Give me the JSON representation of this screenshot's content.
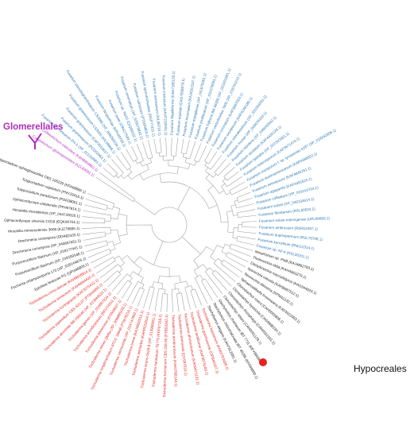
{
  "labels": {
    "glomerellales": "Glomerellales",
    "hypocreales": "Hypocreales"
  },
  "clades": [
    {
      "color": "#b02cbc",
      "leaves": [
        "Colletotrichum gloeosporioides (KZL82691.1)",
        "Colletotrichum orbiculare (KAH8904862.1)"
      ]
    },
    {
      "color": "#2b77b5",
      "leaves": [
        "Fusarium graminearum PH-1 (XP_011318961.1)",
        "Fusarium graminearum (PCD02963.1)",
        "Fusarium graminearum (CAF3619617.1)",
        "Fusarium graminearum CS3005 (KIL09968.1)",
        "Fusarium pseudograminearum CS3096 (XP_009260234.1)",
        "Fusarium langsethiae (KPA40768.1)",
        "Fusarium poae (OBS27549.1)",
        "Fusarium sp. Na10 (QIQ66032.1)",
        "Fusarium venenatum (XP_025579842.1)",
        "Fusarium culmorum (PTD05863.1)",
        "Fusarium sporotrichioides (RGP77231.1)",
        "Fusarium avenaceum (KIL88710.1)",
        "Fusarium tricinctum (KAH7219241.1)",
        "Fusarium flagelliforme (KAH7185133.1)",
        "Fusarium equiseti (CAG7556979.1)",
        "Fusarium incarnatum (KAJ4261157.1)",
        "Fusarium mangiferae (XP_041679381.1)",
        "Fusarium proliferatum (XP_031078581.1)",
        "Fusarium fujikuroi IMI 58289 (XP_023431691.1)",
        "Fusarium verticillioides 7600 (XP_018742210.1)",
        "Fusarium circinatum (KAF5687003.1)",
        "Fusarium oxysporum (KAF5246180.1)",
        "Fusarium odoratissimum (XP_031054291.1)",
        "Fusarium musae (XP_044678163.1)",
        "Fusarium redolens (XP_046043542.1)",
        "Fusarium acutatum (KAF4432126.1)",
        "Fusarium tjaetaba (XP_037203361.1)",
        "Fusarium heterosporum (KAF5671474.1)",
        "Fusarium oxysporum f. sp. lycopersici 4287 (XP_018242806.1)",
        "Fusarium austroamericanum (KAF5596822.1)",
        "Fusarium avenaceum (KAF4845761.1)",
        "Fusarium agapanthi (KAF4491815.1)",
        "Fusarium coffeatum (XP_031010754.1)",
        "Fusarium solani (XP_046134614.1)",
        "Fusarium floridanum (RSL60024.1)",
        "Fusarium solani-melongenae (UPL06669.1)",
        "Fusarium ambrosium (RSM11997.1)",
        "Fusarium duplospermum (RSL79708.1)",
        "Fusarium kuroshium (RMJ12314.1)",
        "Fusarium sp. AF-4 (RSL56201.1)"
      ]
    },
    {
      "color": "#222222",
      "leaves": [
        "Metarhizium sp. PNB (KAJ4862793.1)",
        "Thelonectria olida (KAH4963279.1)",
        "Dactylonectria macrodidyma (KAI1044023.1)",
        "Ilyonectria robusta (KAH8687512.1)",
        "Neonectria ditissima (KPM41232.1)",
        "Sphaerostilbella broomeana (KAF4922083.1)",
        "Clonostachys rosea (CAH0055808.1)",
        "Clonostachys byssicola (CAG9998234.1)",
        "Clonostachys rhizophaga (CAH0022181.1)",
        "Clonostachys solani (CAH0051129.1)",
        "Stachybotrys chartarum IBT 7711 (KEY66586.1)",
        "Stachybotrys chlorohalonata IBT 40285 (KFA69800.1)",
        "Stachybotrys elegans (KAH7312981.1)"
      ]
    },
    {
      "color": "#e5231e",
      "leaves": [
        "Trichoderma harzianum (KAK0753498.1)",
        "Trichoderma guizhouense (OPB44107.1)",
        "Trichoderma lentiforme (KAF3076183.1)",
        "Trichoderma afroharzianum (KAH0471131.1)",
        "Trichoderma simmonsii (QYS97524.1)",
        "Trichoderma atrobrunneum (KAK0766140.1)",
        "Trichoderma harzianum CBS 226.95 (PTB53342.1)",
        "Trichoderma harzianum T6776 (KKP07116.1)",
        "Trichoderma virens Gv29-8 (XP_013958061.1)",
        "Trichoderma semiorbis (KAH0522614.1)",
        "Trichoderma breve (KAJ4856312.1)",
        "Trichoderma citrinoviride (XP_024747893.1)",
        "Trichoderma longibrachiatum ATCC 18648 (PTB79316.1)",
        "Trichoderma reesei QM6a (XP_006966233.1)",
        "Trichoderma parareesei (OTA04627.1)",
        "Trichoderma arundinaceum (RFU74511.1)",
        "Trichoderma gamsii (XP_018657224.1)",
        "Trichoderma atroviride IMI 206040 (XP_013944510.1)",
        "Trichoderma asperellum CBS 433.97 (PTB44089.1)",
        "Trichoderma koningiopsis (KAF3275412.1)",
        "Trichoderma erinaceum (KAH6664420.1)",
        "Trichoderma cornu-damae (KAH6608914.1)"
      ]
    },
    {
      "color": "#222222",
      "leaves": [
        "Epichloe festucae Fl1 (QPG98809.1)",
        "Pochonia chlamydosporia 170 (XP_018144876.1)",
        "Purpureocillium lilacinum (XP_018180548.1)",
        "Purpureocillium lilacinum (XP_018177441.1)",
        "Drechmeria coniospora (XP_040657651.1)",
        "Drechmeria coniospora (ODA82105.1)",
        "Hirsutella minnesotensis 3608 (KJZ78885.1)",
        "Ophiocordyceps sinensis CO18 (EQK99704.1)",
        "Hirsutella rhossiliensis (XP_044720020.1)",
        "Ophiocordyceps unilateralis (PFH67814.1)",
        "Tolypocladium paradoxum (POR38051.1)",
        "Tolypocladium capitatum (PNY29416.1)",
        "Tolypocladium ophioglossoides CBS 100239 (KFA68889.1)"
      ]
    }
  ]
}
